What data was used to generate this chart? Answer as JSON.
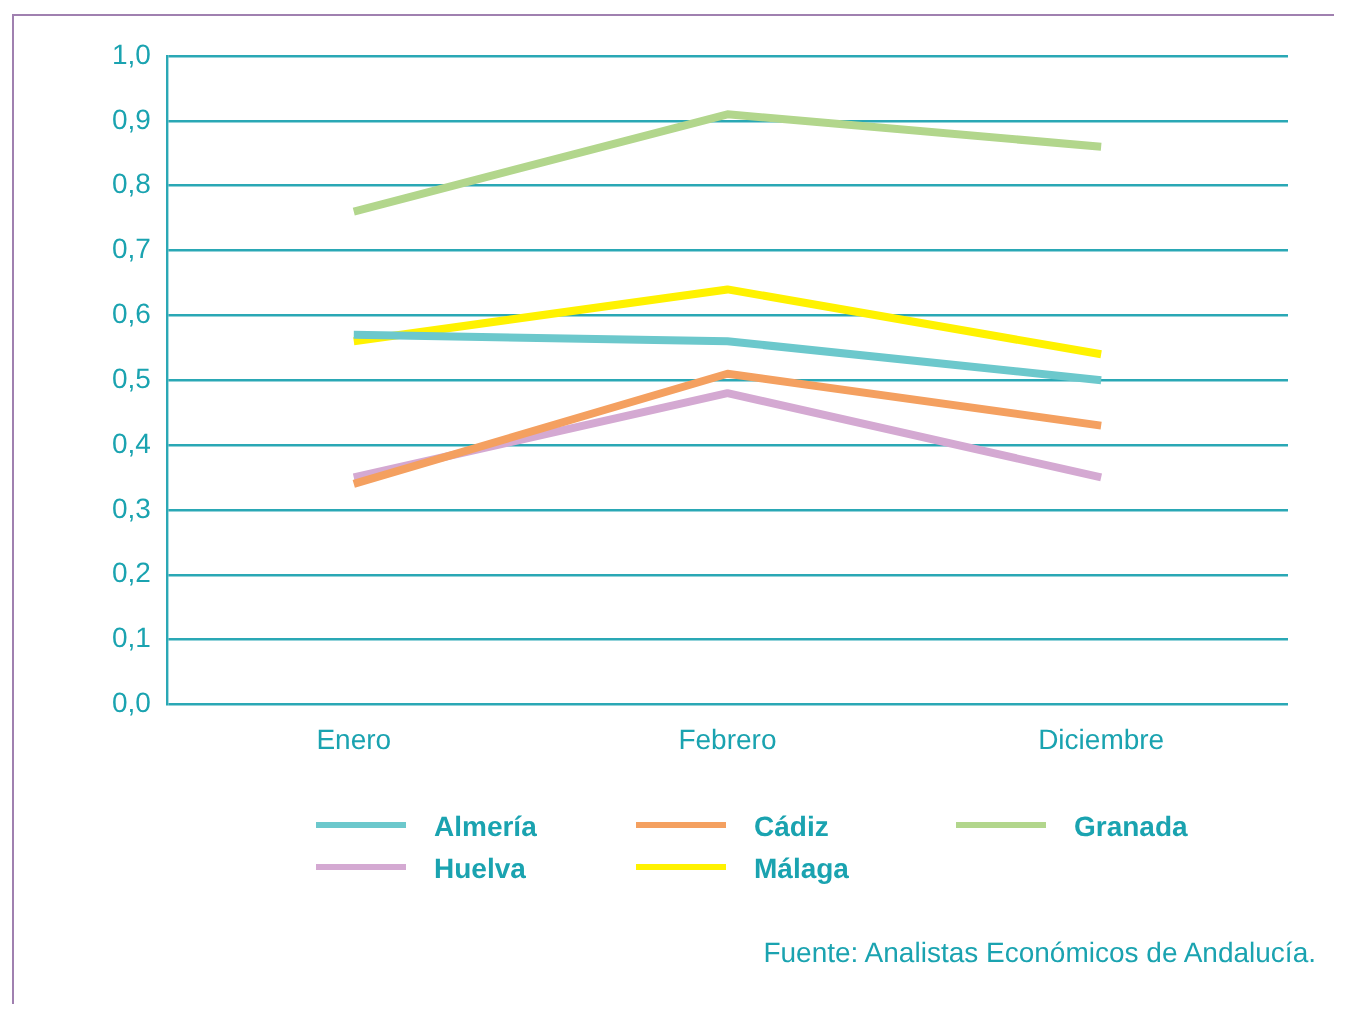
{
  "chart_data": {
    "type": "line",
    "categories": [
      "Enero",
      "Febrero",
      "Diciembre"
    ],
    "series": [
      {
        "name": "Almería",
        "color": "#6cc8cc",
        "values": [
          0.57,
          0.56,
          0.5
        ]
      },
      {
        "name": "Cádiz",
        "color": "#f4a060",
        "values": [
          0.34,
          0.51,
          0.43
        ]
      },
      {
        "name": "Granada",
        "color": "#b2d68c",
        "values": [
          0.76,
          0.91,
          0.86
        ]
      },
      {
        "name": "Huelva",
        "color": "#d4a9d2",
        "values": [
          0.35,
          0.48,
          0.35
        ]
      },
      {
        "name": "Málaga",
        "color": "#fff200",
        "values": [
          0.56,
          0.64,
          0.54
        ]
      }
    ],
    "ylim": [
      0,
      1
    ],
    "yticks": [
      {
        "value": 0,
        "label": "0,0"
      },
      {
        "value": 0.1,
        "label": "0,1"
      },
      {
        "value": 0.2,
        "label": "0,2"
      },
      {
        "value": 0.3,
        "label": "0,3"
      },
      {
        "value": 0.4,
        "label": "0,4"
      },
      {
        "value": 0.5,
        "label": "0,5"
      },
      {
        "value": 0.6,
        "label": "0,6"
      },
      {
        "value": 0.7,
        "label": "0,7"
      },
      {
        "value": 0.8,
        "label": "0,8"
      },
      {
        "value": 0.9,
        "label": "0,9"
      },
      {
        "value": 1,
        "label": "1,0"
      }
    ],
    "grid": "y",
    "legend": "bottom",
    "marker": "none",
    "line_style": "solid",
    "annotations": [
      "Fuente: Analistas Económicos de Andalucía."
    ]
  }
}
